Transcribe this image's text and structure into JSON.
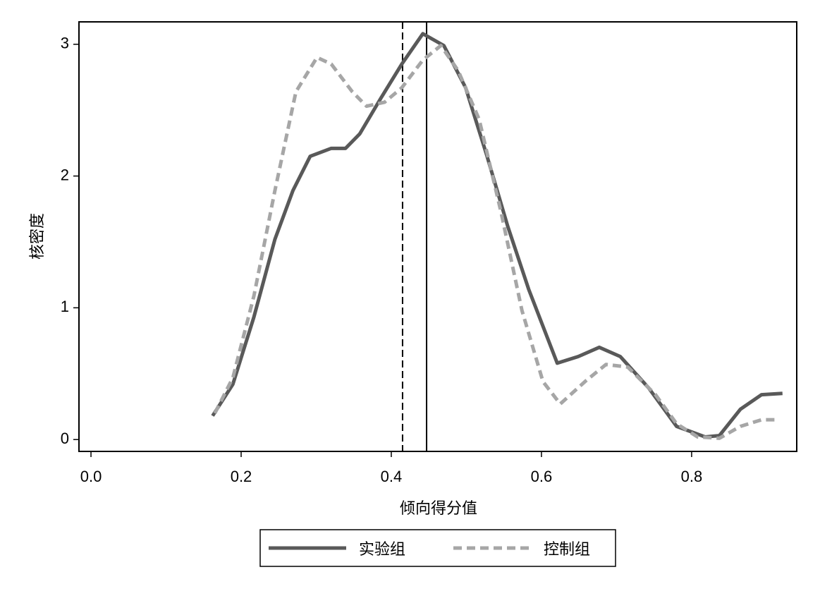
{
  "chart_data": {
    "type": "line",
    "x_label": "倾向得分值",
    "y_label": "核密度",
    "xlim": [
      -0.016,
      0.94
    ],
    "ylim": [
      -0.09,
      3.17
    ],
    "xticks": [
      {
        "value": 0,
        "label": "0.0"
      },
      0.2,
      0.4,
      0.6,
      0.8
    ],
    "yticks": [
      0,
      1,
      2,
      3
    ],
    "reference_lines": [
      {
        "x": 0.415,
        "style": "dashed"
      },
      {
        "x": 0.447,
        "style": "solid"
      }
    ],
    "legend": "bottom",
    "series": [
      {
        "name": "实验组",
        "color": "#595959",
        "style": "solid",
        "x": [
          0.162,
          0.189,
          0.217,
          0.245,
          0.269,
          0.292,
          0.32,
          0.339,
          0.358,
          0.386,
          0.414,
          0.442,
          0.47,
          0.499,
          0.527,
          0.555,
          0.583,
          0.621,
          0.649,
          0.677,
          0.705,
          0.743,
          0.78,
          0.818,
          0.837,
          0.865,
          0.893,
          0.921
        ],
        "values": [
          0.18,
          0.42,
          0.93,
          1.52,
          1.89,
          2.15,
          2.21,
          2.21,
          2.32,
          2.59,
          2.85,
          3.08,
          2.99,
          2.67,
          2.16,
          1.62,
          1.14,
          0.58,
          0.63,
          0.7,
          0.63,
          0.39,
          0.1,
          0.02,
          0.03,
          0.23,
          0.34,
          0.35
        ]
      },
      {
        "name": "控制组",
        "color": "#a6a6a6",
        "style": "dashed",
        "x": [
          0.165,
          0.189,
          0.217,
          0.245,
          0.273,
          0.301,
          0.32,
          0.348,
          0.367,
          0.391,
          0.414,
          0.442,
          0.466,
          0.489,
          0.517,
          0.546,
          0.574,
          0.602,
          0.625,
          0.658,
          0.686,
          0.715,
          0.752,
          0.78,
          0.808,
          0.837,
          0.865,
          0.893,
          0.916
        ],
        "values": [
          0.2,
          0.47,
          1.09,
          1.89,
          2.64,
          2.9,
          2.85,
          2.64,
          2.53,
          2.56,
          2.67,
          2.88,
          2.99,
          2.8,
          2.43,
          1.73,
          0.98,
          0.44,
          0.27,
          0.44,
          0.57,
          0.55,
          0.34,
          0.12,
          0.02,
          0.01,
          0.1,
          0.15,
          0.15
        ]
      }
    ]
  }
}
